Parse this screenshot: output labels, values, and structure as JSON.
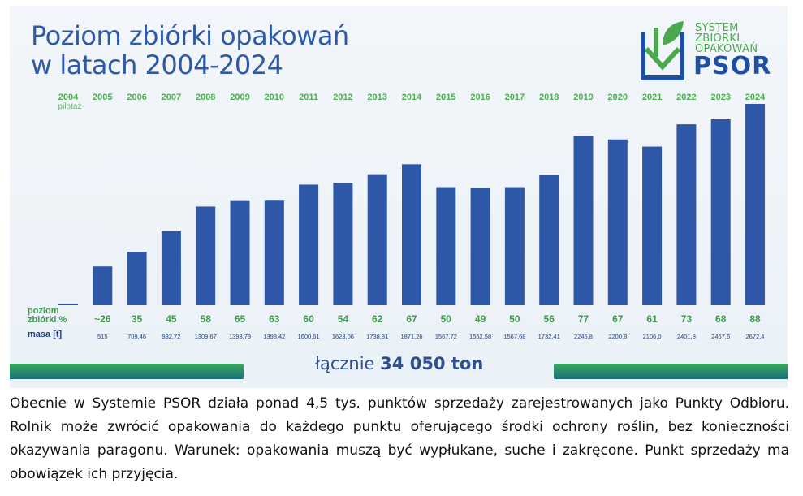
{
  "title_line1": "Poziom zbiórki opakowań",
  "title_line2": "w latach 2004-2024",
  "logo": {
    "line1": "SYSTEM",
    "line2": "ZBIÓRKI",
    "line3": "OPAKOWAŃ",
    "brand": "PSOR",
    "icon": "download-box-leaf-icon",
    "colors": {
      "green": "#4aa84e",
      "blue": "#1f4fa0"
    }
  },
  "pilot_label": "pilotaż",
  "row_labels": {
    "level": "poziom zbiórki %",
    "level_line1": "poziom",
    "level_line2": "zbiórki %",
    "mass": "masa [t]"
  },
  "total": {
    "prefix": "łącznie",
    "value": "34 050 ton"
  },
  "caption": "Obecnie w Systemie PSOR działa ponad 4,5 tys. punktów sprzedaży zarejestrowanych jako Punkty Odbioru. Rolnik może zwrócić opakowania do każdego punktu oferującego środki ochrony roślin, bez konieczności okazywania paragonu. Warunek: opakowania muszą być wypłukane, suche i zakręcone. Punkt sprzedaży ma obowiązek ich przyjęcia.",
  "colors": {
    "bar": "#2f57a8",
    "year": "#4caf50",
    "level": "#3d9a4a",
    "mass": "#1f3f7a"
  },
  "chart_data": {
    "type": "bar",
    "categories": [
      "2004",
      "2005",
      "2006",
      "2007",
      "2008",
      "2009",
      "2010",
      "2011",
      "2012",
      "2013",
      "2014",
      "2015",
      "2016",
      "2017",
      "2018",
      "2019",
      "2020",
      "2021",
      "2022",
      "2023",
      "2024"
    ],
    "level_labels": [
      "",
      "~26",
      "35",
      "45",
      "58",
      "65",
      "63",
      "60",
      "54",
      "62",
      "67",
      "50",
      "49",
      "50",
      "56",
      "77",
      "67",
      "61",
      "73",
      "68",
      "88"
    ],
    "mass_labels": [
      "",
      "515",
      "709,46",
      "982,72",
      "1309,67",
      "1393,79",
      "1398,42",
      "1600,61",
      "1623,06",
      "1738,81",
      "1871,26",
      "1567,72",
      "1552,58",
      "1567,68",
      "1732,41",
      "2245,8",
      "2200,8",
      "2106,0",
      "2401,8",
      "2467,6",
      "2672,4"
    ],
    "values": [
      20,
      515,
      709.46,
      982.72,
      1309.67,
      1393.79,
      1398.42,
      1600.61,
      1623.06,
      1738.81,
      1871.26,
      1567.72,
      1552.58,
      1567.68,
      1732.41,
      2245.8,
      2200.8,
      2106.0,
      2401.8,
      2467.6,
      2672.4
    ],
    "ylim": [
      0,
      2672.4
    ],
    "grid": false,
    "legend": "none"
  }
}
